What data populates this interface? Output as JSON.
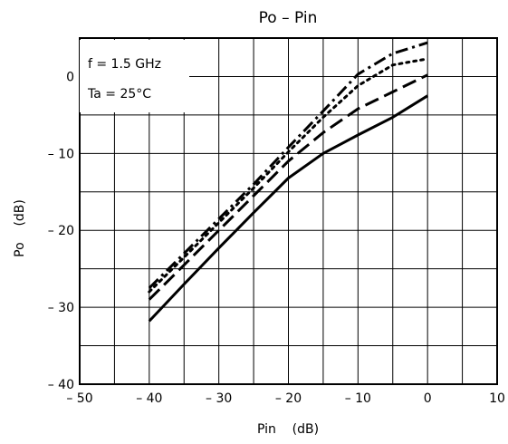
{
  "chart_data": {
    "type": "line",
    "title": "Po  –  Pin",
    "xlabel": "Pin    (dB)",
    "ylabel": "Po    (dB)",
    "xlim": [
      -50,
      10
    ],
    "ylim": [
      -40,
      5
    ],
    "grid": true,
    "x_ticks": [
      -50,
      -40,
      -30,
      -20,
      -10,
      0,
      10
    ],
    "x_tick_labels": [
      "– 50",
      "– 40",
      "– 30",
      "– 20",
      "– 10",
      "0",
      "10"
    ],
    "y_ticks": [
      -40,
      -30,
      -20,
      -10,
      0
    ],
    "y_tick_labels": [
      "– 40",
      "– 30",
      "– 20",
      "– 10",
      "0"
    ],
    "annotations": [
      "f = 1.5 GHz",
      "Ta = 25°C"
    ],
    "series": [
      {
        "style": "solid",
        "x": [
          -40,
          -35,
          -30,
          -25,
          -20,
          -15,
          -10,
          -5,
          0
        ],
        "y": [
          -31.8,
          -27,
          -22.3,
          -17.7,
          -13.2,
          -10,
          -7.6,
          -5.3,
          -2.5
        ]
      },
      {
        "style": "dashed",
        "x": [
          -40,
          -35,
          -30,
          -25,
          -20,
          -15,
          -10,
          -5,
          0
        ],
        "y": [
          -29,
          -24.5,
          -20,
          -15.5,
          -11,
          -7.3,
          -4.2,
          -2,
          0.2
        ]
      },
      {
        "style": "dotted",
        "x": [
          -40,
          -35,
          -30,
          -25,
          -20,
          -15,
          -10,
          -5,
          0
        ],
        "y": [
          -28,
          -23.5,
          -19,
          -14.5,
          -9.8,
          -5.3,
          -1.2,
          1.5,
          2.3
        ]
      },
      {
        "style": "dash-dot",
        "x": [
          -40,
          -35,
          -30,
          -25,
          -20,
          -15,
          -10,
          -5,
          0
        ],
        "y": [
          -27.5,
          -23,
          -18.5,
          -14,
          -9.2,
          -4.5,
          0.3,
          3,
          4.4
        ]
      }
    ]
  }
}
